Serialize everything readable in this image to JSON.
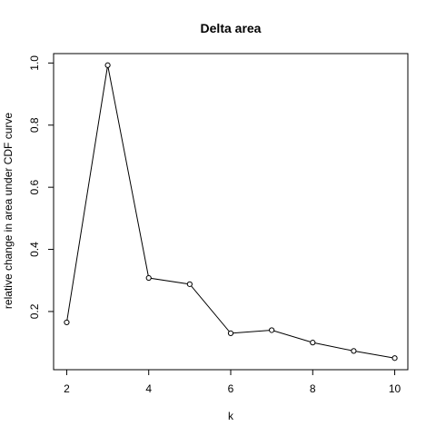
{
  "chart_data": {
    "type": "line",
    "title": "Delta area",
    "xlabel": "k",
    "ylabel": "relative change in area under CDF curve",
    "x": [
      2,
      3,
      4,
      5,
      6,
      7,
      8,
      9,
      10
    ],
    "series": [
      {
        "values": [
          0.165,
          0.993,
          0.308,
          0.288,
          0.13,
          0.14,
          0.1,
          0.073,
          0.05
        ]
      }
    ],
    "xticks": [
      2,
      4,
      6,
      8,
      10
    ],
    "yticks": [
      0.2,
      0.4,
      0.6,
      0.8,
      1.0
    ],
    "xtick_labels": [
      "2",
      "4",
      "6",
      "8",
      "10"
    ],
    "ytick_labels": [
      "0.2",
      "0.4",
      "0.6",
      "0.8",
      "1.0"
    ],
    "xlim": [
      1.68,
      10.32
    ],
    "ylim": [
      0.0127,
      1.0303
    ],
    "grid": false,
    "marker": "open-circle",
    "line_color": "#000000"
  }
}
